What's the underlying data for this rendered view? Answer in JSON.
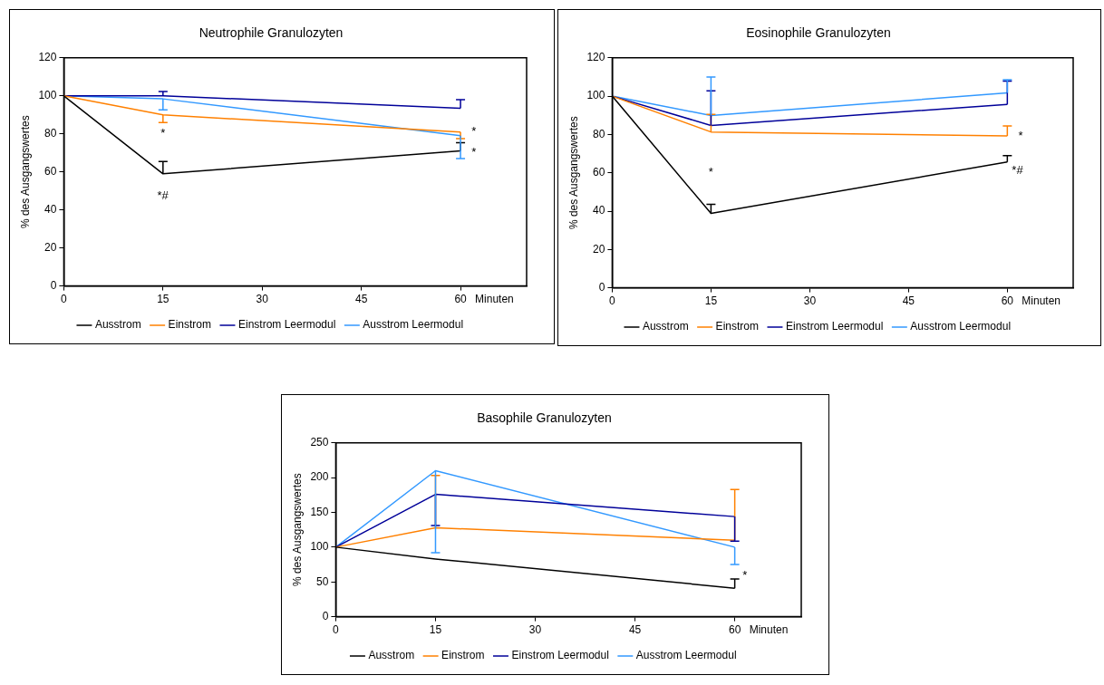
{
  "chart_data": [
    {
      "type": "line",
      "title": "Neutrophile Granulozyten",
      "xlabel": "Minuten",
      "ylabel": "% des Ausgangswertes",
      "x": [
        0,
        15,
        60
      ],
      "xlim": [
        0,
        70
      ],
      "xticks": [
        0,
        15,
        30,
        45,
        60
      ],
      "ylim": [
        0,
        120
      ],
      "yticks": [
        0,
        20,
        40,
        60,
        80,
        100,
        120
      ],
      "grid": false,
      "legend": "bottom",
      "marker": "none",
      "line_style": "solid",
      "series": [
        {
          "name": "Ausstrom",
          "color": "#000000",
          "values": [
            100,
            59,
            71
          ],
          "errors": [
            null,
            [
              59,
              65.5
            ],
            [
              71,
              75.4
            ]
          ]
        },
        {
          "name": "Einstrom",
          "color": "#ff8000",
          "values": [
            100,
            90,
            81
          ],
          "errors": [
            null,
            [
              86,
              90
            ],
            [
              77.5,
              81
            ]
          ]
        },
        {
          "name": "Einstrom Leermodul",
          "color": "#000099",
          "values": [
            100,
            100,
            93.5
          ],
          "errors": [
            null,
            [
              100,
              102.3
            ],
            [
              93.5,
              98
            ]
          ]
        },
        {
          "name": "Ausstrom Leermodul",
          "color": "#3399ff",
          "values": [
            100,
            98.4,
            79
          ],
          "errors": [
            null,
            [
              92.6,
              98.4
            ],
            [
              67,
              79
            ]
          ]
        }
      ],
      "annotations": [
        "*",
        "*#",
        "*",
        "*"
      ]
    },
    {
      "type": "line",
      "title": "Eosinophile Granulozyten",
      "xlabel": "Minuten",
      "ylabel": "% des Ausgangswertes",
      "x": [
        0,
        15,
        60
      ],
      "xlim": [
        0,
        70
      ],
      "xticks": [
        0,
        15,
        30,
        45,
        60
      ],
      "ylim": [
        0,
        120
      ],
      "yticks": [
        0,
        20,
        40,
        60,
        80,
        100,
        120
      ],
      "grid": false,
      "legend": "bottom",
      "marker": "none",
      "line_style": "solid",
      "series": [
        {
          "name": "Ausstrom",
          "color": "#000000",
          "values": [
            100,
            38.8,
            65.7
          ],
          "errors": [
            null,
            [
              38.8,
              43.5
            ],
            [
              65.7,
              69
            ]
          ]
        },
        {
          "name": "Einstrom",
          "color": "#ff8000",
          "values": [
            100,
            81.3,
            79.3
          ],
          "errors": [
            null,
            [
              81.3,
              90.5
            ],
            [
              79.3,
              84.5
            ]
          ]
        },
        {
          "name": "Einstrom Leermodul",
          "color": "#000099",
          "values": [
            100,
            84.7,
            95.7
          ],
          "errors": [
            null,
            [
              84.7,
              102.8
            ],
            [
              95.7,
              107.8
            ]
          ]
        },
        {
          "name": "Ausstrom Leermodul",
          "color": "#3399ff",
          "values": [
            100,
            89.9,
            101.7
          ],
          "errors": [
            null,
            [
              89.9,
              110
            ],
            [
              101.7,
              108.6
            ]
          ]
        }
      ],
      "annotations": [
        "*",
        "*",
        "*#"
      ]
    },
    {
      "type": "line",
      "title": "Basophile Granulozyten",
      "xlabel": "Minuten",
      "ylabel": "% des Ausgangswertes",
      "x": [
        0,
        15,
        60
      ],
      "xlim": [
        0,
        70
      ],
      "xticks": [
        0,
        15,
        30,
        45,
        60
      ],
      "ylim": [
        0,
        250
      ],
      "yticks": [
        0,
        50,
        100,
        150,
        200,
        250
      ],
      "grid": false,
      "legend": "bottom",
      "marker": "none",
      "line_style": "solid",
      "series": [
        {
          "name": "Ausstrom",
          "color": "#000000",
          "values": [
            100,
            83,
            41
          ],
          "errors": [
            null,
            null,
            [
              41,
              54.3
            ]
          ]
        },
        {
          "name": "Einstrom",
          "color": "#ff8000",
          "values": [
            100,
            128,
            110
          ],
          "errors": [
            null,
            [
              128,
              203
            ],
            [
              110,
              183
            ]
          ]
        },
        {
          "name": "Einstrom Leermodul",
          "color": "#000099",
          "values": [
            100,
            176,
            144
          ],
          "errors": [
            null,
            [
              131,
              176
            ],
            [
              108.6,
              144
            ]
          ]
        },
        {
          "name": "Ausstrom Leermodul",
          "color": "#3399ff",
          "values": [
            100,
            210,
            100
          ],
          "errors": [
            null,
            [
              92,
              210
            ],
            [
              75,
              100
            ]
          ]
        }
      ],
      "annotations": [
        "*"
      ]
    }
  ]
}
